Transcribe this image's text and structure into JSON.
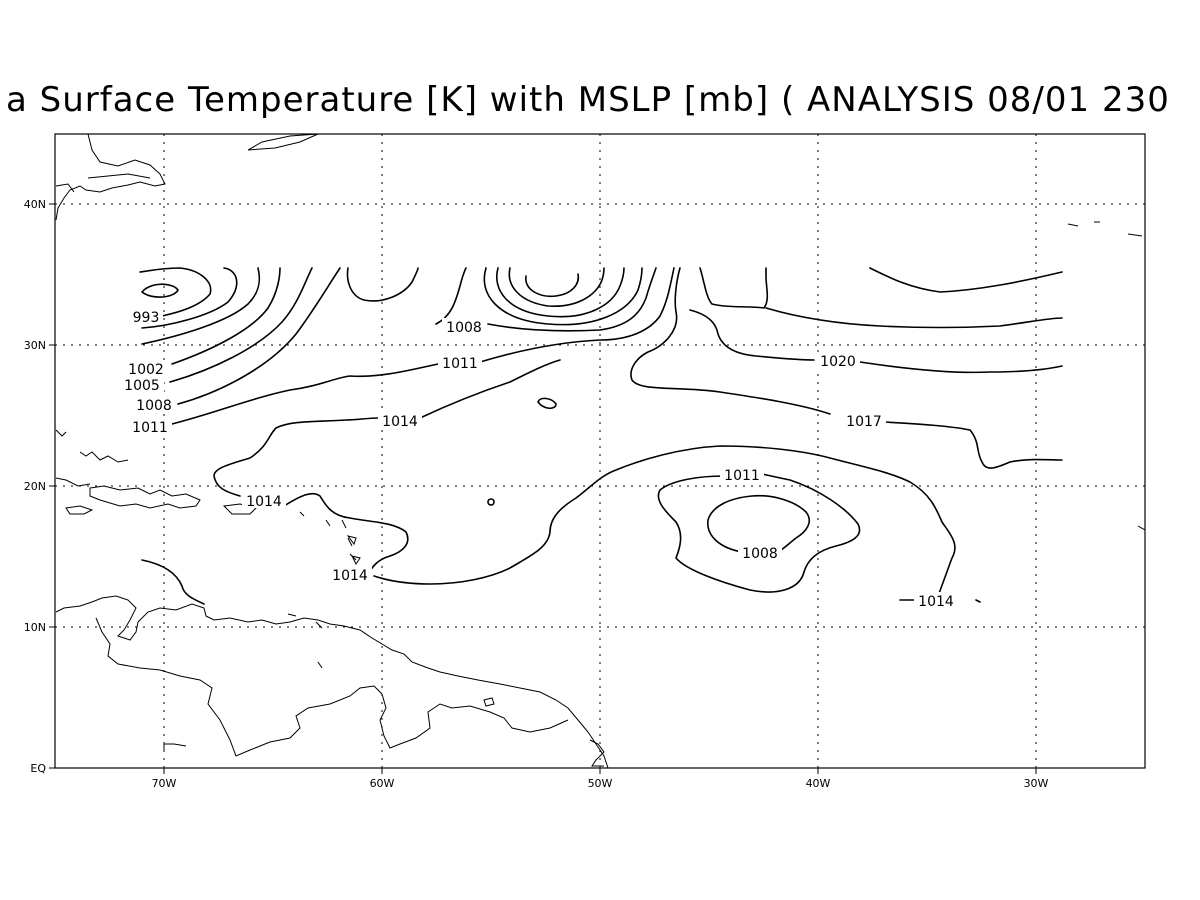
{
  "title": "a Surface Temperature [K] with MSLP [mb] ( ANALYSIS 08/01 230",
  "axes": {
    "lat_ticks": [
      "40N",
      "30N",
      "20N",
      "10N",
      "EQ"
    ],
    "lon_ticks": [
      "70W",
      "60W",
      "50W",
      "40W",
      "30W"
    ]
  },
  "contour_labels": [
    "993",
    "1002",
    "1005",
    "1008",
    "1011",
    "1008",
    "1011",
    "1014",
    "1014",
    "1014",
    "1011",
    "1008",
    "1020",
    "1017",
    "1014"
  ]
}
